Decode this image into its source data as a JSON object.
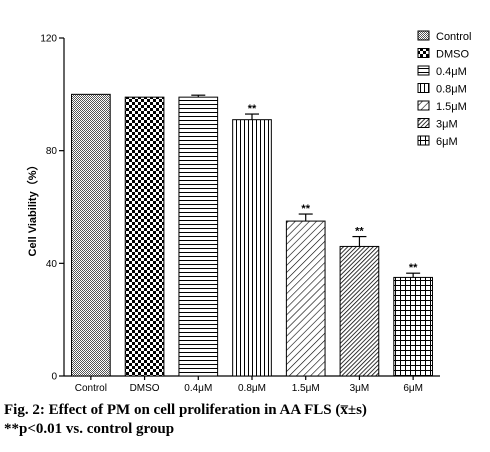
{
  "chart_data": {
    "type": "bar",
    "title": "",
    "xlabel": "",
    "ylabel": "Cell Viability（%）",
    "ylim": [
      0,
      120
    ],
    "yticks": [
      "0",
      "40",
      "80",
      "120"
    ],
    "grid": false,
    "legend_position": "top-right",
    "categories": [
      "Control",
      "DMSO",
      "0.4μM",
      "0.8μM",
      "1.5μM",
      "3μM",
      "6μM"
    ],
    "legend": [
      "Control",
      "DMSO",
      "0.4μM",
      "0.8μM",
      "1.5μM",
      "3μM",
      "6μM"
    ],
    "values": [
      100,
      99,
      99,
      91,
      55,
      46,
      35
    ],
    "errors": [
      0,
      0,
      0.7,
      2,
      2.5,
      3.5,
      1.5
    ],
    "significance": [
      "",
      "",
      "",
      "**",
      "**",
      "**",
      "**"
    ]
  },
  "caption": {
    "line1": "Fig. 2: Effect of PM on cell proliferation in AA FLS (x̅±s)",
    "line2": "**p<0.01 vs. control group"
  }
}
